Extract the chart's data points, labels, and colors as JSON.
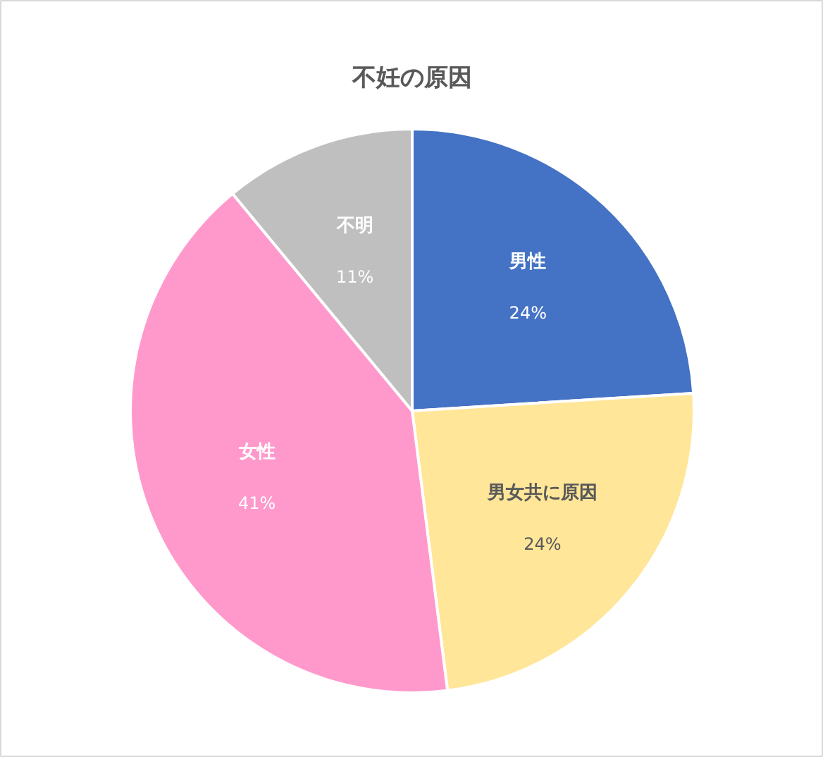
{
  "chart_data": {
    "type": "pie",
    "title": "不妊の原因",
    "categories": [
      "男性",
      "男女共に原因",
      "女性",
      "不明"
    ],
    "values": [
      24,
      24,
      41,
      11
    ],
    "colors": [
      "#4472c4",
      "#ffe699",
      "#ff99cc",
      "#bfbfbf"
    ],
    "value_labels": [
      "24%",
      "24%",
      "41%",
      "11%"
    ]
  }
}
